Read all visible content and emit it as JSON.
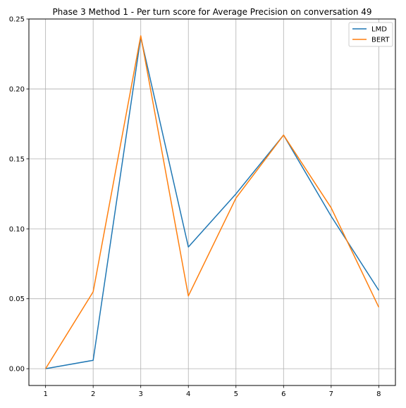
{
  "chart_data": {
    "type": "line",
    "title": "Phase 3 Method 1 - Per turn score for Average Precision on conversation 49",
    "xlabel": "",
    "ylabel": "",
    "x": [
      1,
      2,
      3,
      4,
      5,
      6,
      7,
      8
    ],
    "x_ticks": [
      "1",
      "2",
      "3",
      "4",
      "5",
      "6",
      "7",
      "8"
    ],
    "y_ticks": [
      "0.00",
      "0.05",
      "0.10",
      "0.15",
      "0.20",
      "0.25"
    ],
    "xlim": [
      0.65,
      8.35
    ],
    "ylim": [
      -0.012,
      0.25
    ],
    "grid": true,
    "legend_position": "top-right",
    "series": [
      {
        "name": "LMD",
        "color": "#1f77b4",
        "values": [
          0.0,
          0.006,
          0.237,
          0.087,
          0.125,
          0.167,
          0.109,
          0.056
        ]
      },
      {
        "name": "BERT",
        "color": "#ff7f0e",
        "values": [
          0.0,
          0.055,
          0.238,
          0.052,
          0.122,
          0.167,
          0.115,
          0.044
        ]
      }
    ]
  }
}
